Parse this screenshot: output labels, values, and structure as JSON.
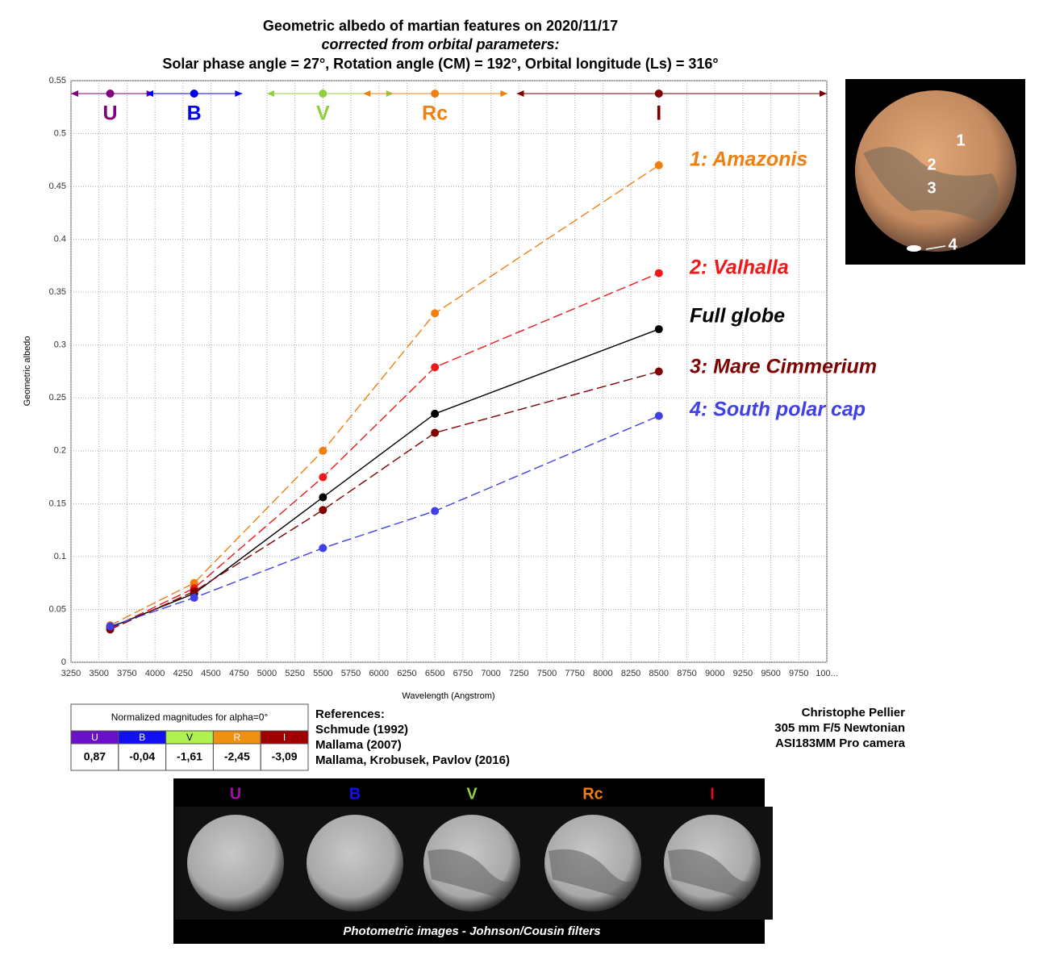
{
  "chart_data": {
    "type": "line",
    "title": "Geometric albedo of martian features on 2020/11/17",
    "subtitle": "corrected from orbital parameters:",
    "subtitle2": "Solar phase angle = 27°, Rotation angle (CM) = 192°, Orbital longitude (Ls) = 316°",
    "xlabel": "Wavelength (Angstrom)",
    "ylabel": "Geometric albedo",
    "x": [
      3600,
      4350,
      5500,
      6500,
      8500
    ],
    "series": [
      {
        "name": "1: Amazonis",
        "color": "#f07f10",
        "style": "dashed",
        "values": [
          0.035,
          0.075,
          0.2,
          0.33,
          0.47
        ]
      },
      {
        "name": "2: Valhalla",
        "color": "#f01818",
        "style": "dashed",
        "values": [
          0.032,
          0.07,
          0.175,
          0.279,
          0.368
        ]
      },
      {
        "name": "Full globe",
        "color": "#000000",
        "style": "solid",
        "values": [
          0.033,
          0.065,
          0.156,
          0.235,
          0.315
        ]
      },
      {
        "name": "3: Mare Cimmerium",
        "color": "#800000",
        "style": "dashed",
        "values": [
          0.031,
          0.067,
          0.144,
          0.217,
          0.275
        ]
      },
      {
        "name": "4: South polar cap",
        "color": "#4040e8",
        "style": "dashed",
        "values": [
          0.034,
          0.061,
          0.108,
          0.143,
          0.233
        ]
      }
    ],
    "bands": [
      {
        "label": "U",
        "color": "#800080",
        "center": 3600,
        "range": [
          3250,
          3990
        ]
      },
      {
        "label": "B",
        "color": "#0000f0",
        "center": 4350,
        "range": [
          3920,
          4780
        ]
      },
      {
        "label": "V",
        "color": "#90d040",
        "center": 5500,
        "range": [
          5000,
          6130
        ]
      },
      {
        "label": "Rc",
        "color": "#f08010",
        "center": 6500,
        "range": [
          5860,
          7150
        ]
      },
      {
        "label": "I",
        "color": "#800000",
        "center": 8500,
        "range": [
          7230,
          10000
        ]
      }
    ],
    "xlim": [
      3250,
      10000
    ],
    "xticks": [
      3250,
      3500,
      3750,
      4000,
      4250,
      4500,
      4750,
      5000,
      5250,
      5500,
      5750,
      6000,
      6250,
      6500,
      6750,
      7000,
      7250,
      7500,
      7750,
      8000,
      8250,
      8500,
      8750,
      9000,
      9250,
      9500,
      9750,
      {
        "value": 10000,
        "label": "100..."
      }
    ],
    "ylim": [
      0,
      0.55
    ],
    "yticks": [
      0,
      0.05,
      0.1,
      0.15,
      0.2,
      0.25,
      0.3,
      0.35,
      0.4,
      0.45,
      0.5,
      0.55
    ],
    "grid": true
  },
  "table": {
    "title": "Normalized magnitudes for alpha=0°",
    "headers": [
      {
        "text": "U",
        "color": "#6a10c8"
      },
      {
        "text": "B",
        "color": "#1010f0"
      },
      {
        "text": "V",
        "color": "#b0f050"
      },
      {
        "text": "R",
        "color": "#f09010"
      },
      {
        "text": "I",
        "color": "#a00000"
      }
    ],
    "values": [
      "0,87",
      "-0,04",
      "-1,61",
      "-2,45",
      "-3,09"
    ]
  },
  "references": [
    "References:",
    "Schmude (1992)",
    "Mallama (2007)",
    "Mallama, Krobusek, Pavlov (2016)"
  ],
  "credits": [
    "Christophe Pellier",
    "305 mm F/5 Newtonian",
    "ASI183MM Pro camera"
  ],
  "mars_labels": [
    "1",
    "2",
    "3",
    "4"
  ],
  "strip": {
    "labels": [
      {
        "text": "U",
        "color": "#a010a0"
      },
      {
        "text": "B",
        "color": "#1010f0"
      },
      {
        "text": "V",
        "color": "#90d040"
      },
      {
        "text": "Rc",
        "color": "#f07f10"
      },
      {
        "text": "I",
        "color": "#e01010"
      }
    ],
    "caption": "Photometric images - Johnson/Cousin filters"
  }
}
